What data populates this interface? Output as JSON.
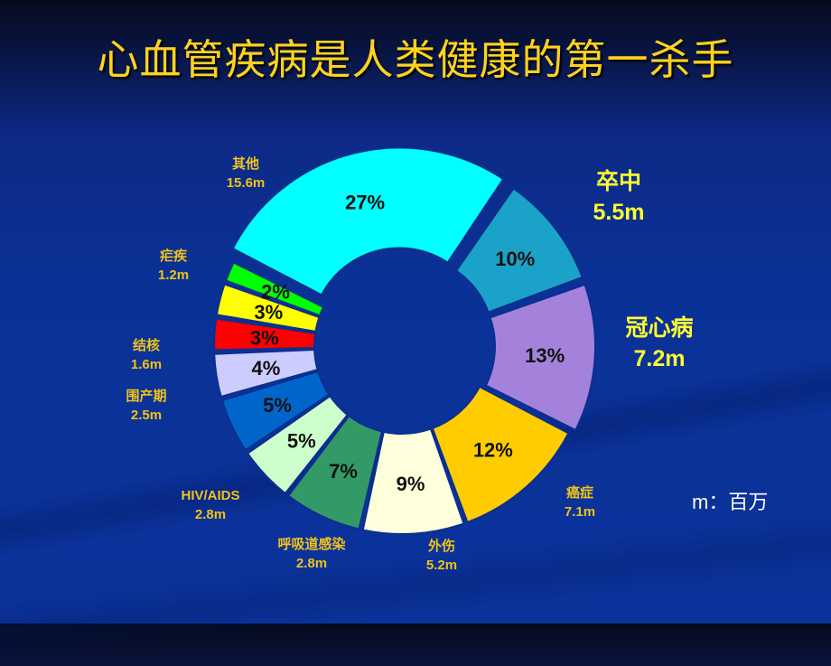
{
  "slide": {
    "title": "心血管疾病是人类健康的第一杀手",
    "unit_note": "m：百万",
    "background_color": "#0b339b",
    "title_color": "#ffd21e"
  },
  "chart_data": {
    "type": "pie",
    "variant": "donut",
    "title": "心血管疾病是人类健康的第一杀手",
    "unit": "m = 百万 (millions)",
    "legend": "none (labels placed around ring)",
    "slices": [
      {
        "name": "其他",
        "value_m": "15.6m",
        "percent": 27,
        "pct_label": "27%",
        "color": "#00ffff"
      },
      {
        "name": "卒中",
        "value_m": "5.5m",
        "percent": 10,
        "pct_label": "10%",
        "color": "#1ba2c8"
      },
      {
        "name": "冠心病",
        "value_m": "7.2m",
        "percent": 13,
        "pct_label": "13%",
        "color": "#a482dc"
      },
      {
        "name": "癌症",
        "value_m": "7.1m",
        "percent": 12,
        "pct_label": "12%",
        "color": "#ffcc00"
      },
      {
        "name": "外伤",
        "value_m": "5.2m",
        "percent": 9,
        "pct_label": "9%",
        "color": "#ffffdc"
      },
      {
        "name": "呼吸道感染",
        "value_m": "2.8m",
        "percent": 7,
        "pct_label": "7%",
        "color": "#339966"
      },
      {
        "name": "HIV/AIDS",
        "value_m": "2.8m",
        "percent": 5,
        "pct_label": "5%",
        "color": "#ccffcc"
      },
      {
        "name": "围产期",
        "value_m": "2.5m",
        "percent": 5,
        "pct_label": "5%",
        "color": "#0066cc"
      },
      {
        "name": "",
        "value_m": "",
        "percent": 4,
        "pct_label": "4%",
        "color": "#ccccff"
      },
      {
        "name": "结核",
        "value_m": "1.6m",
        "percent": 3,
        "pct_label": "3%",
        "color": "#ff0000"
      },
      {
        "name": "",
        "value_m": "",
        "percent": 3,
        "pct_label": "3%",
        "color": "#ffff00"
      },
      {
        "name": "疟疾",
        "value_m": "1.2m",
        "percent": 2,
        "pct_label": "2%",
        "color": "#00ff00"
      }
    ]
  },
  "labels": {
    "qita": {
      "name": "其他",
      "value": "15.6m"
    },
    "zuzhong": {
      "name": "卒中",
      "value": "5.5m"
    },
    "guanxin": {
      "name": "冠心病",
      "value": "7.2m"
    },
    "aizheng": {
      "name": "癌症",
      "value": "7.1m"
    },
    "waishang": {
      "name": "外伤",
      "value": "5.2m"
    },
    "huxi": {
      "name": "呼吸道感染",
      "value": "2.8m"
    },
    "hiv": {
      "name": "HIV/AIDS",
      "value": "2.8m"
    },
    "weichan": {
      "name": "围产期",
      "value": "2.5m"
    },
    "jiehe": {
      "name": "结核",
      "value": "1.6m"
    },
    "nueji": {
      "name": "疟疾",
      "value": "1.2m"
    }
  }
}
